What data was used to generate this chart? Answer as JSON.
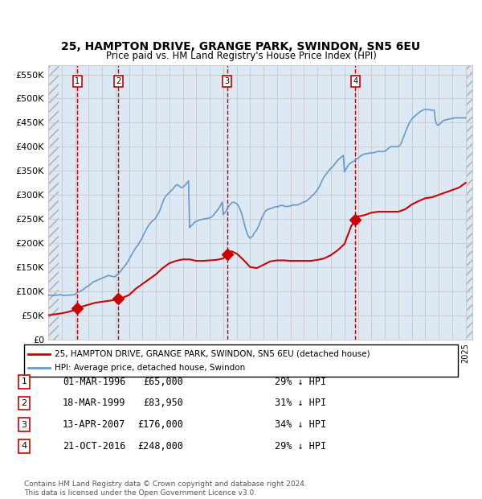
{
  "title": "25, HAMPTON DRIVE, GRANGE PARK, SWINDON, SN5 6EU",
  "subtitle": "Price paid vs. HM Land Registry's House Price Index (HPI)",
  "xlabel": "",
  "ylabel": "",
  "ylim": [
    0,
    570000
  ],
  "yticks": [
    0,
    50000,
    100000,
    150000,
    200000,
    250000,
    300000,
    350000,
    400000,
    450000,
    500000,
    550000
  ],
  "ytick_labels": [
    "£0",
    "£50K",
    "£100K",
    "£150K",
    "£200K",
    "£250K",
    "£300K",
    "£350K",
    "£400K",
    "£450K",
    "£500K",
    "£550K"
  ],
  "xmin": 1994.0,
  "xmax": 2025.5,
  "background_color": "#ffffff",
  "plot_bg_color": "#dce9f5",
  "hatch_color": "#c0c0c0",
  "red_line_color": "#cc0000",
  "blue_line_color": "#6699cc",
  "sale_marker_color": "#cc0000",
  "vline_color": "#cc0000",
  "sale_box_color": "#cc0000",
  "legend_box_color": "#000000",
  "footer_text": "Contains HM Land Registry data © Crown copyright and database right 2024.\nThis data is licensed under the Open Government Licence v3.0.",
  "legend_red_label": "25, HAMPTON DRIVE, GRANGE PARK, SWINDON, SN5 6EU (detached house)",
  "legend_blue_label": "HPI: Average price, detached house, Swindon",
  "sales": [
    {
      "num": 1,
      "date": 1996.17,
      "price": 65000,
      "label": "01-MAR-1996",
      "price_str": "£65,000",
      "hpi_str": "29% ↓ HPI"
    },
    {
      "num": 2,
      "date": 1999.21,
      "price": 83950,
      "label": "18-MAR-1999",
      "price_str": "£83,950",
      "hpi_str": "31% ↓ HPI"
    },
    {
      "num": 3,
      "date": 2007.29,
      "price": 176000,
      "label": "13-APR-2007",
      "price_str": "£176,000",
      "hpi_str": "34% ↓ HPI"
    },
    {
      "num": 4,
      "date": 2016.81,
      "price": 248000,
      "label": "21-OCT-2016",
      "price_str": "£248,000",
      "hpi_str": "29% ↓ HPI"
    }
  ],
  "hpi_data": {
    "x": [
      1994.0,
      1994.08,
      1994.17,
      1994.25,
      1994.33,
      1994.42,
      1994.5,
      1994.58,
      1994.67,
      1994.75,
      1994.83,
      1994.92,
      1995.0,
      1995.08,
      1995.17,
      1995.25,
      1995.33,
      1995.42,
      1995.5,
      1995.58,
      1995.67,
      1995.75,
      1995.83,
      1995.92,
      1996.0,
      1996.08,
      1996.17,
      1996.25,
      1996.33,
      1996.42,
      1996.5,
      1996.58,
      1996.67,
      1996.75,
      1996.83,
      1996.92,
      1997.0,
      1997.08,
      1997.17,
      1997.25,
      1997.33,
      1997.42,
      1997.5,
      1997.58,
      1997.67,
      1997.75,
      1997.83,
      1997.92,
      1998.0,
      1998.08,
      1998.17,
      1998.25,
      1998.33,
      1998.42,
      1998.5,
      1998.58,
      1998.67,
      1998.75,
      1998.83,
      1998.92,
      1999.0,
      1999.08,
      1999.17,
      1999.25,
      1999.33,
      1999.42,
      1999.5,
      1999.58,
      1999.67,
      1999.75,
      1999.83,
      1999.92,
      2000.0,
      2000.08,
      2000.17,
      2000.25,
      2000.33,
      2000.42,
      2000.5,
      2000.58,
      2000.67,
      2000.75,
      2000.83,
      2000.92,
      2001.0,
      2001.08,
      2001.17,
      2001.25,
      2001.33,
      2001.42,
      2001.5,
      2001.58,
      2001.67,
      2001.75,
      2001.83,
      2001.92,
      2002.0,
      2002.08,
      2002.17,
      2002.25,
      2002.33,
      2002.42,
      2002.5,
      2002.58,
      2002.67,
      2002.75,
      2002.83,
      2002.92,
      2003.0,
      2003.08,
      2003.17,
      2003.25,
      2003.33,
      2003.42,
      2003.5,
      2003.58,
      2003.67,
      2003.75,
      2003.83,
      2003.92,
      2004.0,
      2004.08,
      2004.17,
      2004.25,
      2004.33,
      2004.42,
      2004.5,
      2004.58,
      2004.67,
      2004.75,
      2004.83,
      2004.92,
      2005.0,
      2005.08,
      2005.17,
      2005.25,
      2005.33,
      2005.42,
      2005.5,
      2005.58,
      2005.67,
      2005.75,
      2005.83,
      2005.92,
      2006.0,
      2006.08,
      2006.17,
      2006.25,
      2006.33,
      2006.42,
      2006.5,
      2006.58,
      2006.67,
      2006.75,
      2006.83,
      2006.92,
      2007.0,
      2007.08,
      2007.17,
      2007.25,
      2007.33,
      2007.42,
      2007.5,
      2007.58,
      2007.67,
      2007.75,
      2007.83,
      2007.92,
      2008.0,
      2008.08,
      2008.17,
      2008.25,
      2008.33,
      2008.42,
      2008.5,
      2008.58,
      2008.67,
      2008.75,
      2008.83,
      2008.92,
      2009.0,
      2009.08,
      2009.17,
      2009.25,
      2009.33,
      2009.42,
      2009.5,
      2009.58,
      2009.67,
      2009.75,
      2009.83,
      2009.92,
      2010.0,
      2010.08,
      2010.17,
      2010.25,
      2010.33,
      2010.42,
      2010.5,
      2010.58,
      2010.67,
      2010.75,
      2010.83,
      2010.92,
      2011.0,
      2011.08,
      2011.17,
      2011.25,
      2011.33,
      2011.42,
      2011.5,
      2011.58,
      2011.67,
      2011.75,
      2011.83,
      2011.92,
      2012.0,
      2012.08,
      2012.17,
      2012.25,
      2012.33,
      2012.42,
      2012.5,
      2012.58,
      2012.67,
      2012.75,
      2012.83,
      2012.92,
      2013.0,
      2013.08,
      2013.17,
      2013.25,
      2013.33,
      2013.42,
      2013.5,
      2013.58,
      2013.67,
      2013.75,
      2013.83,
      2013.92,
      2014.0,
      2014.08,
      2014.17,
      2014.25,
      2014.33,
      2014.42,
      2014.5,
      2014.58,
      2014.67,
      2014.75,
      2014.83,
      2014.92,
      2015.0,
      2015.08,
      2015.17,
      2015.25,
      2015.33,
      2015.42,
      2015.5,
      2015.58,
      2015.67,
      2015.75,
      2015.83,
      2015.92,
      2016.0,
      2016.08,
      2016.17,
      2016.25,
      2016.33,
      2016.42,
      2016.5,
      2016.58,
      2016.67,
      2016.75,
      2016.83,
      2016.92,
      2017.0,
      2017.08,
      2017.17,
      2017.25,
      2017.33,
      2017.42,
      2017.5,
      2017.58,
      2017.67,
      2017.75,
      2017.83,
      2017.92,
      2018.0,
      2018.08,
      2018.17,
      2018.25,
      2018.33,
      2018.42,
      2018.5,
      2018.58,
      2018.67,
      2018.75,
      2018.83,
      2018.92,
      2019.0,
      2019.08,
      2019.17,
      2019.25,
      2019.33,
      2019.42,
      2019.5,
      2019.58,
      2019.67,
      2019.75,
      2019.83,
      2019.92,
      2020.0,
      2020.08,
      2020.17,
      2020.25,
      2020.33,
      2020.42,
      2020.5,
      2020.58,
      2020.67,
      2020.75,
      2020.83,
      2020.92,
      2021.0,
      2021.08,
      2021.17,
      2021.25,
      2021.33,
      2021.42,
      2021.5,
      2021.58,
      2021.67,
      2021.75,
      2021.83,
      2021.92,
      2022.0,
      2022.08,
      2022.17,
      2022.25,
      2022.33,
      2022.42,
      2022.5,
      2022.58,
      2022.67,
      2022.75,
      2022.83,
      2022.92,
      2023.0,
      2023.08,
      2023.17,
      2023.25,
      2023.33,
      2023.42,
      2023.5,
      2023.58,
      2023.67,
      2023.75,
      2023.83,
      2023.92,
      2024.0,
      2024.08,
      2024.17,
      2024.25,
      2024.33,
      2024.42,
      2024.5,
      2024.58,
      2024.67,
      2024.75,
      2024.83,
      2024.92,
      2025.0
    ],
    "y": [
      91000,
      91500,
      92000,
      91500,
      91000,
      91000,
      91500,
      92000,
      91500,
      92000,
      92500,
      93000,
      92000,
      91500,
      91000,
      91000,
      91500,
      92000,
      91500,
      92000,
      92000,
      92000,
      92500,
      93000,
      93000,
      95000,
      97000,
      98000,
      99000,
      100000,
      102000,
      103000,
      105000,
      107000,
      109000,
      110000,
      111000,
      113000,
      115000,
      117000,
      119000,
      120000,
      121000,
      122000,
      123000,
      124000,
      125000,
      126000,
      127000,
      128000,
      129000,
      130000,
      131000,
      132000,
      133000,
      132000,
      131000,
      131000,
      130000,
      130000,
      131000,
      133000,
      135000,
      137000,
      140000,
      143000,
      146000,
      149000,
      152000,
      155000,
      158000,
      162000,
      166000,
      170000,
      174000,
      178000,
      182000,
      186000,
      190000,
      193000,
      196000,
      200000,
      204000,
      208000,
      212000,
      217000,
      222000,
      226000,
      231000,
      235000,
      238000,
      241000,
      244000,
      246000,
      248000,
      250000,
      253000,
      257000,
      261000,
      265000,
      271000,
      278000,
      284000,
      290000,
      295000,
      298000,
      300000,
      303000,
      305000,
      307000,
      310000,
      312000,
      315000,
      318000,
      320000,
      321000,
      320000,
      318000,
      316000,
      315000,
      316000,
      318000,
      320000,
      323000,
      326000,
      329000,
      232000,
      235000,
      237000,
      239000,
      242000,
      244000,
      245000,
      246000,
      247000,
      248000,
      248000,
      249000,
      250000,
      250000,
      250000,
      251000,
      251000,
      252000,
      252000,
      253000,
      255000,
      257000,
      260000,
      263000,
      266000,
      269000,
      272000,
      276000,
      280000,
      285000,
      259000,
      262000,
      265000,
      269000,
      273000,
      277000,
      280000,
      282000,
      284000,
      285000,
      284000,
      283000,
      282000,
      279000,
      275000,
      270000,
      264000,
      256000,
      247000,
      238000,
      229000,
      222000,
      216000,
      212000,
      210000,
      212000,
      214000,
      218000,
      222000,
      225000,
      228000,
      233000,
      238000,
      244000,
      250000,
      255000,
      260000,
      264000,
      267000,
      269000,
      270000,
      271000,
      272000,
      272000,
      273000,
      274000,
      275000,
      276000,
      275000,
      276000,
      277000,
      278000,
      278000,
      278000,
      277000,
      276000,
      276000,
      276000,
      276000,
      277000,
      277000,
      278000,
      279000,
      279000,
      279000,
      279000,
      279000,
      280000,
      281000,
      282000,
      283000,
      285000,
      285000,
      286000,
      287000,
      289000,
      291000,
      293000,
      295000,
      298000,
      300000,
      302000,
      305000,
      308000,
      311000,
      315000,
      319000,
      324000,
      329000,
      334000,
      338000,
      341000,
      344000,
      347000,
      350000,
      353000,
      355000,
      357000,
      360000,
      363000,
      366000,
      369000,
      372000,
      374000,
      376000,
      378000,
      380000,
      382000,
      348000,
      352000,
      356000,
      360000,
      363000,
      365000,
      367000,
      368000,
      370000,
      371000,
      373000,
      375000,
      376000,
      378000,
      380000,
      382000,
      383000,
      384000,
      385000,
      385000,
      386000,
      386000,
      387000,
      387000,
      387000,
      387000,
      388000,
      388000,
      389000,
      390000,
      390000,
      390000,
      390000,
      390000,
      390000,
      390000,
      391000,
      392000,
      394000,
      396000,
      398000,
      400000,
      400000,
      400000,
      400000,
      400000,
      400000,
      400000,
      400000,
      402000,
      405000,
      410000,
      416000,
      422000,
      428000,
      434000,
      440000,
      445000,
      450000,
      454000,
      457000,
      460000,
      462000,
      464000,
      466000,
      468000,
      470000,
      472000,
      474000,
      475000,
      476000,
      477000,
      477000,
      477000,
      477000,
      477000,
      477000,
      476000,
      476000,
      476000,
      476000,
      455000,
      448000,
      445000,
      445000,
      447000,
      450000,
      452000,
      454000,
      455000,
      456000,
      456000,
      457000,
      457000,
      458000,
      458000,
      459000,
      459000,
      460000,
      460000,
      460000,
      460000,
      460000,
      460000,
      460000,
      460000,
      460000,
      460000,
      460000
    ]
  },
  "red_data": {
    "x": [
      1994.0,
      1994.5,
      1995.0,
      1995.5,
      1996.0,
      1996.17,
      1996.5,
      1997.0,
      1997.5,
      1998.0,
      1998.5,
      1999.0,
      1999.21,
      1999.5,
      2000.0,
      2000.5,
      2001.0,
      2001.5,
      2002.0,
      2002.5,
      2003.0,
      2003.5,
      2004.0,
      2004.5,
      2005.0,
      2005.5,
      2006.0,
      2006.5,
      2007.0,
      2007.29,
      2007.5,
      2007.6,
      2008.0,
      2008.5,
      2009.0,
      2009.5,
      2010.0,
      2010.5,
      2011.0,
      2011.5,
      2012.0,
      2012.5,
      2013.0,
      2013.5,
      2014.0,
      2014.5,
      2015.0,
      2015.5,
      2016.0,
      2016.5,
      2016.81,
      2017.0,
      2017.5,
      2018.0,
      2018.5,
      2019.0,
      2019.5,
      2020.0,
      2020.5,
      2021.0,
      2021.5,
      2022.0,
      2022.5,
      2023.0,
      2023.5,
      2024.0,
      2024.5,
      2025.0
    ],
    "y": [
      50000,
      52000,
      54000,
      57000,
      61000,
      65000,
      68000,
      72000,
      76000,
      78000,
      80000,
      82000,
      83950,
      86000,
      92000,
      105000,
      115000,
      125000,
      135000,
      148000,
      158000,
      163000,
      166000,
      166000,
      163000,
      163000,
      164000,
      165000,
      168000,
      176000,
      180000,
      183000,
      178000,
      165000,
      150000,
      148000,
      155000,
      162000,
      164000,
      164000,
      163000,
      163000,
      163000,
      163000,
      165000,
      168000,
      175000,
      185000,
      198000,
      235000,
      248000,
      255000,
      258000,
      263000,
      265000,
      265000,
      265000,
      265000,
      270000,
      280000,
      287000,
      293000,
      295000,
      300000,
      305000,
      310000,
      315000,
      325000
    ]
  }
}
